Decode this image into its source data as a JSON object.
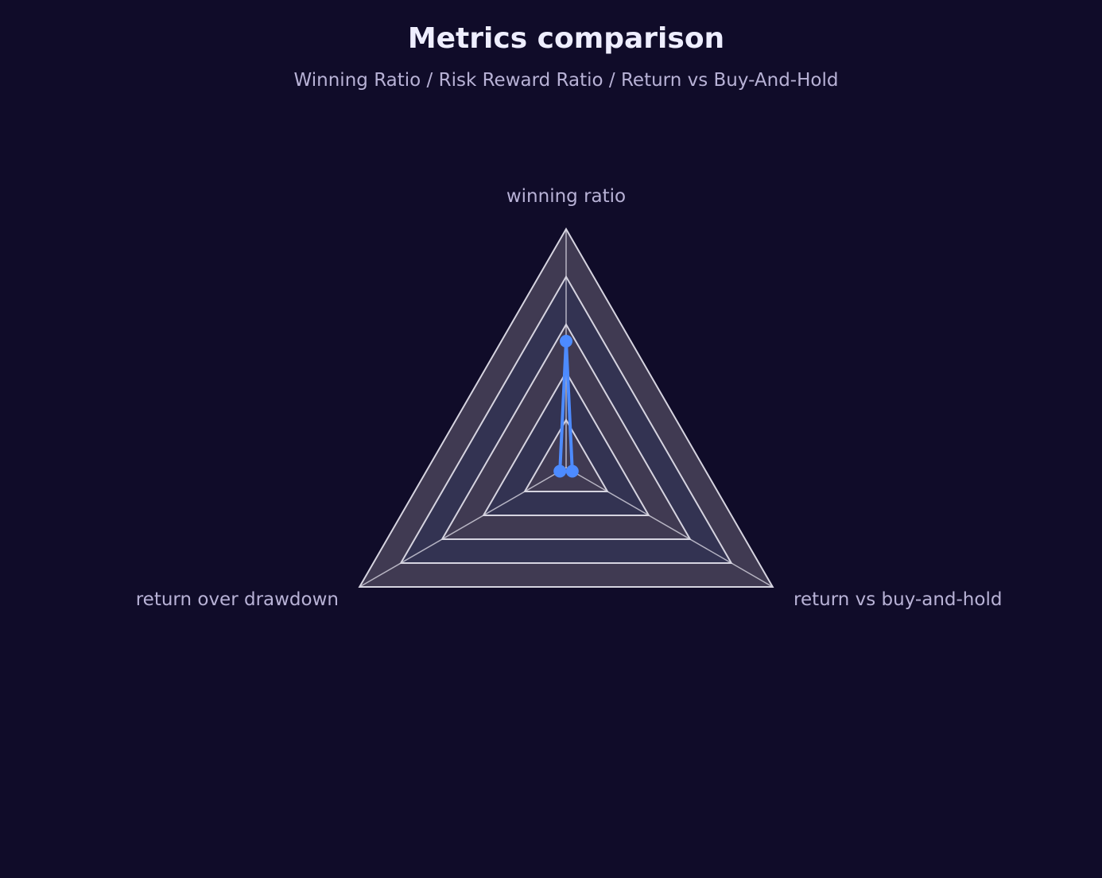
{
  "chart_data": {
    "type": "radar",
    "title": "Metrics comparison",
    "subtitle": "Winning Ratio / Risk Reward Ratio / Return vs Buy-And-Hold",
    "axes": [
      "winning ratio",
      "return vs buy-and-hold",
      "return over drawdown"
    ],
    "rlim": [
      0,
      1
    ],
    "grid_levels": 5,
    "series": [
      {
        "values": [
          0.53,
          0.03,
          0.03
        ],
        "color": "#4d8bff"
      }
    ],
    "colors": {
      "background": "#100c29",
      "band_light": "#403a52",
      "band_dark": "#333352",
      "grid_line": "#d6d4e0"
    }
  }
}
